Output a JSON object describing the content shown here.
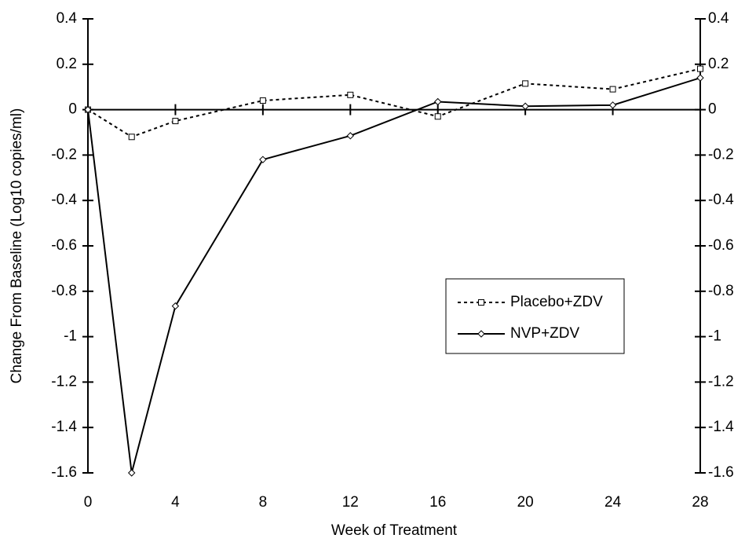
{
  "chart_data": {
    "type": "line",
    "xlabel": "Week of Treatment",
    "ylabel": "Change From Baseline (Log10 copies/ml)",
    "x": [
      0,
      2,
      4,
      8,
      12,
      16,
      20,
      24,
      28
    ],
    "series": [
      {
        "name": "Placebo+ZDV",
        "color": "#000000",
        "dash": true,
        "marker": "square",
        "values": [
          0,
          -0.12,
          -0.05,
          0.04,
          0.065,
          -0.03,
          0.115,
          0.09,
          0.18
        ]
      },
      {
        "name": "NVP+ZDV",
        "color": "#000000",
        "dash": false,
        "marker": "diamond",
        "values": [
          0,
          -1.6,
          -0.865,
          -0.22,
          -0.115,
          0.035,
          0.015,
          0.02,
          0.14
        ]
      }
    ],
    "xlim": [
      0,
      28
    ],
    "xticks": [
      0,
      4,
      8,
      12,
      16,
      20,
      24,
      28
    ],
    "ylim": [
      -1.6,
      0.4
    ],
    "yticks": [
      0.4,
      0.2,
      0,
      -0.2,
      -0.4,
      -0.6,
      -0.8,
      -1,
      -1.2,
      -1.4,
      -1.6
    ],
    "y2lim": [
      -1.6,
      0.4
    ],
    "y2ticks": [
      0.4,
      0.2,
      0,
      -0.2,
      -0.4,
      -0.6,
      -0.8,
      -1,
      -1.2,
      -1.4,
      -1.6
    ],
    "legend": "center-right",
    "grid": false
  }
}
